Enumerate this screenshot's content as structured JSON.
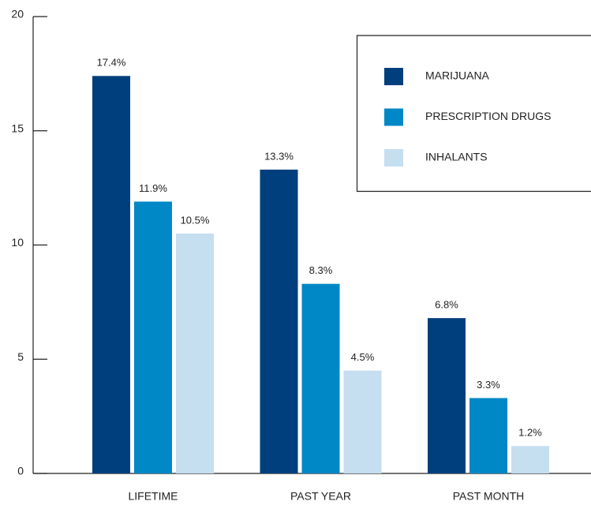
{
  "chart_data": {
    "type": "bar",
    "categories": [
      "LIFETIME",
      "PAST YEAR",
      "PAST MONTH"
    ],
    "series": [
      {
        "name": "MARIJUANA",
        "color": "#003f7d",
        "values": [
          17.4,
          13.3,
          6.8
        ],
        "value_labels": [
          "17.4%",
          "13.3%",
          "6.8%"
        ]
      },
      {
        "name": "PRESCRIPTION DRUGS",
        "color": "#0088c6",
        "values": [
          11.9,
          8.3,
          3.3
        ],
        "value_labels": [
          "11.9%",
          "8.3%",
          "3.3%"
        ]
      },
      {
        "name": "INHALANTS",
        "color": "#c5def0",
        "values": [
          10.5,
          4.5,
          1.2
        ],
        "value_labels": [
          "10.5%",
          "4.5%",
          "1.2%"
        ]
      }
    ],
    "ylim": [
      0,
      20
    ],
    "yticks": [
      0,
      5,
      10,
      15,
      20
    ],
    "legend": "top-right"
  }
}
